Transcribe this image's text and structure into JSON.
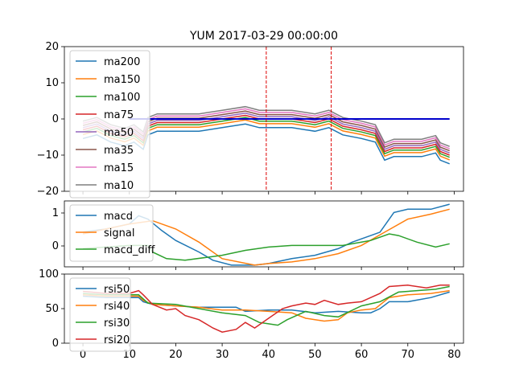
{
  "title": "YUM 2017-03-29 00:00:00",
  "colors": {
    "c0": "#1f77b4",
    "c1": "#ff7f0e",
    "c2": "#2ca02c",
    "c3": "#d62728",
    "c4": "#9467bd",
    "c5": "#8c564b",
    "c6": "#e377c2",
    "c7": "#7f7f7f",
    "flat_line": "#0000cc",
    "vline": "#dd0000"
  },
  "x_ticks": [
    "0",
    "10",
    "20",
    "30",
    "40",
    "50",
    "60",
    "70",
    "80"
  ],
  "chart_data": [
    {
      "type": "line",
      "title": "YUM 2017-03-29 00:00:00",
      "xlim": [
        -4,
        82
      ],
      "ylim": [
        -20,
        20
      ],
      "y_ticks": [
        "20",
        "10",
        "0",
        "−10",
        "−20"
      ],
      "legend_position": "upper-left",
      "vertical_lines": [
        39.5,
        53.5
      ],
      "flat_line": {
        "x_start": 10,
        "x_end": 79,
        "y": 0
      },
      "series": [
        {
          "name": "ma200",
          "color_key": "c0",
          "offset": -2.4
        },
        {
          "name": "ma150",
          "color_key": "c1",
          "offset": -1.3
        },
        {
          "name": "ma100",
          "color_key": "c2",
          "offset": -0.6
        },
        {
          "name": "ma75",
          "color_key": "c3",
          "offset": 0.0
        },
        {
          "name": "ma50",
          "color_key": "c4",
          "offset": 0.6
        },
        {
          "name": "ma35",
          "color_key": "c5",
          "offset": 1.2
        },
        {
          "name": "ma15",
          "color_key": "c6",
          "offset": 1.8
        },
        {
          "name": "ma10",
          "color_key": "c7",
          "offset": 2.4
        }
      ],
      "base_points": [
        [
          0,
          -3
        ],
        [
          3,
          -2
        ],
        [
          6,
          -4
        ],
        [
          9,
          -5
        ],
        [
          11,
          -4
        ],
        [
          13,
          -6
        ],
        [
          14,
          -2
        ],
        [
          16,
          -1
        ],
        [
          20,
          -1
        ],
        [
          25,
          -1
        ],
        [
          30,
          0
        ],
        [
          35,
          1
        ],
        [
          38,
          0
        ],
        [
          40,
          0
        ],
        [
          45,
          0
        ],
        [
          50,
          -1
        ],
        [
          53,
          0
        ],
        [
          56,
          -2
        ],
        [
          60,
          -3
        ],
        [
          63,
          -4
        ],
        [
          65,
          -9
        ],
        [
          67,
          -8
        ],
        [
          70,
          -8
        ],
        [
          73,
          -8
        ],
        [
          76,
          -7
        ],
        [
          77,
          -9
        ],
        [
          79,
          -10
        ]
      ]
    },
    {
      "type": "line",
      "xlim": [
        -4,
        82
      ],
      "ylim": [
        -0.55,
        1.45
      ],
      "y_ticks": [
        "1",
        "0"
      ],
      "legend_position": "upper-left",
      "series": [
        {
          "name": "macd",
          "color_key": "c0",
          "values": [
            [
              0,
              0.5
            ],
            [
              5,
              0.6
            ],
            [
              10,
              0.75
            ],
            [
              12,
              1.0
            ],
            [
              14,
              0.9
            ],
            [
              17,
              0.55
            ],
            [
              20,
              0.25
            ],
            [
              25,
              -0.1
            ],
            [
              28,
              -0.35
            ],
            [
              32,
              -0.5
            ],
            [
              37,
              -0.5
            ],
            [
              40,
              -0.45
            ],
            [
              45,
              -0.3
            ],
            [
              50,
              -0.2
            ],
            [
              55,
              0.0
            ],
            [
              58,
              0.2
            ],
            [
              62,
              0.4
            ],
            [
              64,
              0.5
            ],
            [
              67,
              1.1
            ],
            [
              70,
              1.2
            ],
            [
              75,
              1.2
            ],
            [
              79,
              1.35
            ]
          ]
        },
        {
          "name": "signal",
          "color_key": "c1",
          "values": [
            [
              0,
              0.45
            ],
            [
              5,
              0.6
            ],
            [
              10,
              0.75
            ],
            [
              15,
              0.85
            ],
            [
              20,
              0.6
            ],
            [
              25,
              0.2
            ],
            [
              30,
              -0.3
            ],
            [
              37,
              -0.5
            ],
            [
              40,
              -0.45
            ],
            [
              45,
              -0.4
            ],
            [
              50,
              -0.3
            ],
            [
              55,
              -0.15
            ],
            [
              60,
              0.1
            ],
            [
              65,
              0.5
            ],
            [
              70,
              0.9
            ],
            [
              75,
              1.05
            ],
            [
              79,
              1.2
            ]
          ]
        },
        {
          "name": "macd_diff",
          "color_key": "c2",
          "values": [
            [
              0,
              0.0
            ],
            [
              5,
              0.05
            ],
            [
              10,
              0.1
            ],
            [
              14,
              0.1
            ],
            [
              15,
              -0.1
            ],
            [
              18,
              -0.3
            ],
            [
              22,
              -0.35
            ],
            [
              30,
              -0.2
            ],
            [
              35,
              -0.05
            ],
            [
              40,
              0.05
            ],
            [
              45,
              0.1
            ],
            [
              50,
              0.1
            ],
            [
              53,
              0.1
            ],
            [
              56,
              0.1
            ],
            [
              60,
              0.2
            ],
            [
              62,
              0.25
            ],
            [
              66,
              0.45
            ],
            [
              68,
              0.4
            ],
            [
              72,
              0.2
            ],
            [
              76,
              0.05
            ],
            [
              79,
              0.15
            ]
          ]
        }
      ]
    },
    {
      "type": "line",
      "xlim": [
        -4,
        82
      ],
      "ylim": [
        0,
        100
      ],
      "y_ticks": [
        "100",
        "50",
        "0"
      ],
      "legend_position": "upper-left",
      "series": [
        {
          "name": "rsi50",
          "color_key": "c0",
          "values": [
            [
              0,
              68
            ],
            [
              5,
              66
            ],
            [
              10,
              66
            ],
            [
              12,
              66
            ],
            [
              13,
              60
            ],
            [
              15,
              56
            ],
            [
              20,
              54
            ],
            [
              25,
              52
            ],
            [
              30,
              52
            ],
            [
              33,
              52
            ],
            [
              35,
              46
            ],
            [
              40,
              48
            ],
            [
              45,
              48
            ],
            [
              50,
              44
            ],
            [
              55,
              46
            ],
            [
              60,
              44
            ],
            [
              62,
              44
            ],
            [
              64,
              50
            ],
            [
              66,
              60
            ],
            [
              70,
              60
            ],
            [
              75,
              66
            ],
            [
              79,
              74
            ]
          ]
        },
        {
          "name": "rsi40",
          "color_key": "c1",
          "values": [
            [
              0,
              70
            ],
            [
              5,
              68
            ],
            [
              10,
              68
            ],
            [
              12,
              68
            ],
            [
              13,
              62
            ],
            [
              15,
              56
            ],
            [
              20,
              54
            ],
            [
              25,
              52
            ],
            [
              30,
              48
            ],
            [
              35,
              48
            ],
            [
              40,
              46
            ],
            [
              45,
              44
            ],
            [
              48,
              36
            ],
            [
              50,
              34
            ],
            [
              52,
              32
            ],
            [
              55,
              34
            ],
            [
              57,
              44
            ],
            [
              60,
              48
            ],
            [
              63,
              50
            ],
            [
              66,
              66
            ],
            [
              70,
              70
            ],
            [
              75,
              72
            ],
            [
              79,
              76
            ]
          ]
        },
        {
          "name": "rsi30",
          "color_key": "c2",
          "values": [
            [
              0,
              72
            ],
            [
              5,
              70
            ],
            [
              10,
              70
            ],
            [
              12,
              70
            ],
            [
              14,
              58
            ],
            [
              20,
              56
            ],
            [
              25,
              50
            ],
            [
              30,
              44
            ],
            [
              35,
              40
            ],
            [
              38,
              30
            ],
            [
              40,
              28
            ],
            [
              42,
              26
            ],
            [
              44,
              34
            ],
            [
              48,
              46
            ],
            [
              52,
              40
            ],
            [
              55,
              38
            ],
            [
              60,
              54
            ],
            [
              64,
              60
            ],
            [
              68,
              74
            ],
            [
              72,
              76
            ],
            [
              76,
              78
            ],
            [
              79,
              82
            ]
          ]
        },
        {
          "name": "rsi20",
          "color_key": "c3",
          "values": [
            [
              0,
              75
            ],
            [
              5,
              72
            ],
            [
              10,
              72
            ],
            [
              12,
              76
            ],
            [
              13,
              70
            ],
            [
              15,
              56
            ],
            [
              18,
              48
            ],
            [
              20,
              50
            ],
            [
              22,
              40
            ],
            [
              25,
              34
            ],
            [
              28,
              22
            ],
            [
              30,
              16
            ],
            [
              33,
              20
            ],
            [
              35,
              30
            ],
            [
              37,
              22
            ],
            [
              40,
              36
            ],
            [
              43,
              50
            ],
            [
              45,
              54
            ],
            [
              48,
              58
            ],
            [
              50,
              56
            ],
            [
              52,
              62
            ],
            [
              55,
              56
            ],
            [
              57,
              58
            ],
            [
              60,
              60
            ],
            [
              64,
              72
            ],
            [
              66,
              82
            ],
            [
              70,
              84
            ],
            [
              74,
              80
            ],
            [
              77,
              84
            ],
            [
              79,
              84
            ]
          ]
        }
      ]
    }
  ]
}
